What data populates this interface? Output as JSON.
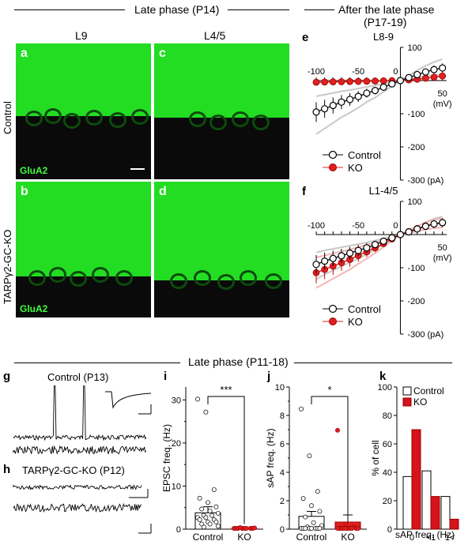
{
  "headers": {
    "top_left": "Late phase (P14)",
    "top_right_line1": "After the late phase",
    "top_right_line2": "(P17-19)",
    "bottom": "Late phase (P11-18)"
  },
  "micrographs": {
    "col_labels": [
      "L9",
      "L4/5"
    ],
    "row_labels": [
      "Control",
      "TARPγ2-GC-KO"
    ],
    "stain": "GluA2",
    "panels": [
      "a",
      "c",
      "b",
      "d"
    ]
  },
  "panel_letters": {
    "e": "e",
    "f": "f",
    "g": "g",
    "h": "h",
    "i": "i",
    "j": "j",
    "k": "k"
  },
  "iv_common": {
    "x_ticks": [
      "-100",
      "-50",
      "0",
      "50"
    ],
    "x_unit": "(mV)",
    "y_ticks": [
      "100",
      "-100",
      "-200",
      "-300 (pA)"
    ],
    "legend": [
      "Control",
      "KO"
    ]
  },
  "iv_e": {
    "title": "L8-9"
  },
  "iv_f": {
    "title": "L1-4/5"
  },
  "traces": {
    "g_title": "Control (P13)",
    "h_title": "TARPγ2-GC-KO (P12)"
  },
  "chart_data": [
    {
      "panel": "e",
      "type": "line",
      "title": "L8-9",
      "xlabel": "(mV)",
      "ylabel": "(pA)",
      "xlim": [
        -100,
        60
      ],
      "ylim": [
        -300,
        100
      ],
      "x": [
        -100,
        -90,
        -80,
        -70,
        -60,
        -50,
        -40,
        -30,
        -20,
        -10,
        0,
        10,
        20,
        30,
        40,
        50
      ],
      "series": [
        {
          "name": "Control",
          "values": [
            -95,
            -85,
            -75,
            -65,
            -57,
            -48,
            -38,
            -30,
            -20,
            -10,
            0,
            9,
            18,
            26,
            33,
            38
          ]
        },
        {
          "name": "KO",
          "values": [
            -5,
            -4.5,
            -4,
            -3.5,
            -3,
            -2.5,
            -2,
            -1.5,
            -1,
            -0.5,
            0,
            2,
            4,
            7,
            10,
            14
          ]
        }
      ]
    },
    {
      "panel": "f",
      "type": "line",
      "title": "L1-4/5",
      "xlabel": "(mV)",
      "ylabel": "(pA)",
      "xlim": [
        -100,
        60
      ],
      "ylim": [
        -300,
        100
      ],
      "x": [
        -100,
        -90,
        -80,
        -70,
        -60,
        -50,
        -40,
        -30,
        -20,
        -10,
        0,
        10,
        20,
        30,
        40,
        50
      ],
      "series": [
        {
          "name": "Control",
          "values": [
            -90,
            -80,
            -72,
            -64,
            -56,
            -48,
            -40,
            -30,
            -20,
            -10,
            0,
            8,
            17,
            25,
            32,
            36
          ]
        },
        {
          "name": "KO",
          "values": [
            -115,
            -105,
            -95,
            -85,
            -75,
            -63,
            -52,
            -40,
            -27,
            -13,
            0,
            9,
            18,
            26,
            32,
            35
          ]
        }
      ]
    },
    {
      "panel": "i",
      "type": "bar",
      "ylabel": "EPSC freq. (Hz)",
      "ylim": [
        0,
        33
      ],
      "categories": [
        "Control",
        "KO"
      ],
      "values": [
        3.8,
        0.1
      ],
      "sem": [
        1.4,
        0.05
      ],
      "significance": "***",
      "points": {
        "Control": [
          30,
          27,
          9,
          7,
          6,
          5,
          4.5,
          4,
          3.5,
          3,
          3,
          2.5,
          2.5,
          2,
          2,
          1.5,
          1.5,
          1,
          1,
          0.5,
          0.3
        ],
        "KO": [
          0,
          0,
          0,
          0,
          0,
          0,
          0,
          0,
          0.1,
          0.2
        ]
      }
    },
    {
      "panel": "j",
      "type": "bar",
      "ylabel": "sAP freq. (Hz)",
      "ylim": [
        0,
        10
      ],
      "categories": [
        "Control",
        "KO"
      ],
      "values": [
        0.9,
        0.5
      ],
      "sem": [
        0.35,
        0.5
      ],
      "significance": "*",
      "points": {
        "Control": [
          8.4,
          5.1,
          2.6,
          2.1,
          1.6,
          1.2,
          0.8,
          0.4,
          0.2,
          0.1,
          0,
          0,
          0,
          0,
          0,
          0,
          0,
          0
        ],
        "KO": [
          6.9,
          0.3,
          0.1,
          0,
          0,
          0,
          0,
          0,
          0,
          0,
          0,
          0,
          0
        ]
      }
    },
    {
      "panel": "k",
      "type": "bar",
      "xlabel": "sAP freq. (Hz)",
      "ylabel": "% of cell",
      "ylim": [
        0,
        100
      ],
      "categories": [
        "0",
        "<1",
        "1<"
      ],
      "series": [
        {
          "name": "Control",
          "values": [
            37,
            41,
            23
          ]
        },
        {
          "name": "KO",
          "values": [
            70,
            23,
            7
          ]
        }
      ]
    }
  ]
}
